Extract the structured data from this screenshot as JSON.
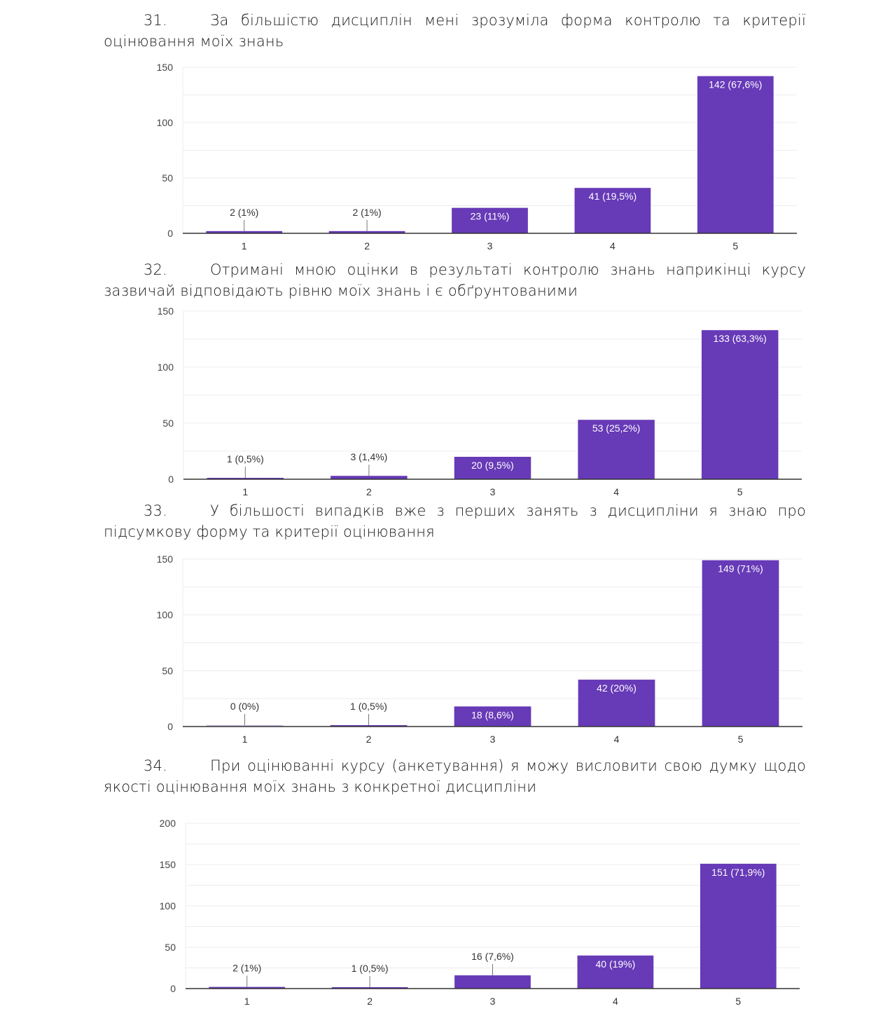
{
  "questions": [
    {
      "number": "31.",
      "line1": "За більшістю дисциплін мені зрозуміла форма контролю та критерії",
      "line2": "оцінювання моїх знань"
    },
    {
      "number": "32.",
      "line1": "Отримані мною оцінки в результаті контролю знань наприкінці курсу",
      "line2": "зазвичай відповідають рівню моїх знань і є обґрунтованими"
    },
    {
      "number": "33.",
      "line1": "У більшості випадків вже з перших занять з дисципліни я знаю про",
      "line2": "підсумкову форму та критерії оцінювання"
    },
    {
      "number": "34.",
      "line1": "При оцінюванні курсу (анкетування) я можу висловити свою думку щодо",
      "line2": "якості оцінювання моїх знань з конкретної дисципліни"
    }
  ],
  "colors": {
    "bar": "#673ab7",
    "grid": "#ececec",
    "axis": "#333333"
  },
  "chart_data": [
    {
      "type": "bar",
      "title": "",
      "categories": [
        "1",
        "2",
        "3",
        "4",
        "5"
      ],
      "values": [
        2,
        2,
        23,
        41,
        142
      ],
      "labels": [
        "2 (1%)",
        "2 (1%)",
        "23 (11%)",
        "41 (19,5%)",
        "142 (67,6%)"
      ],
      "yticks": [
        "0",
        "50",
        "100",
        "150"
      ],
      "ylim": [
        0,
        150
      ],
      "minor_step": 25,
      "xlabel": "",
      "ylabel": "",
      "grid": true
    },
    {
      "type": "bar",
      "title": "",
      "categories": [
        "1",
        "2",
        "3",
        "4",
        "5"
      ],
      "values": [
        1,
        3,
        20,
        53,
        133
      ],
      "labels": [
        "1 (0,5%)",
        "3 (1,4%)",
        "20 (9,5%)",
        "53 (25,2%)",
        "133 (63,3%)"
      ],
      "yticks": [
        "0",
        "50",
        "100",
        "150"
      ],
      "ylim": [
        0,
        150
      ],
      "minor_step": 25,
      "xlabel": "",
      "ylabel": "",
      "grid": true
    },
    {
      "type": "bar",
      "title": "",
      "categories": [
        "1",
        "2",
        "3",
        "4",
        "5"
      ],
      "values": [
        0,
        1,
        18,
        42,
        149
      ],
      "labels": [
        "0 (0%)",
        "1 (0,5%)",
        "18 (8,6%)",
        "42 (20%)",
        "149 (71%)"
      ],
      "yticks": [
        "0",
        "50",
        "100",
        "150"
      ],
      "ylim": [
        0,
        150
      ],
      "minor_step": 25,
      "xlabel": "",
      "ylabel": "",
      "grid": true
    },
    {
      "type": "bar",
      "title": "",
      "categories": [
        "1",
        "2",
        "3",
        "4",
        "5"
      ],
      "values": [
        2,
        1,
        16,
        40,
        151
      ],
      "labels": [
        "2 (1%)",
        "1 (0,5%)",
        "16 (7,6%)",
        "40 (19%)",
        "151 (71,9%)"
      ],
      "yticks": [
        "0",
        "50",
        "100",
        "150",
        "200"
      ],
      "ylim": [
        0,
        200
      ],
      "minor_step": 25,
      "xlabel": "",
      "ylabel": "",
      "grid": true
    }
  ]
}
